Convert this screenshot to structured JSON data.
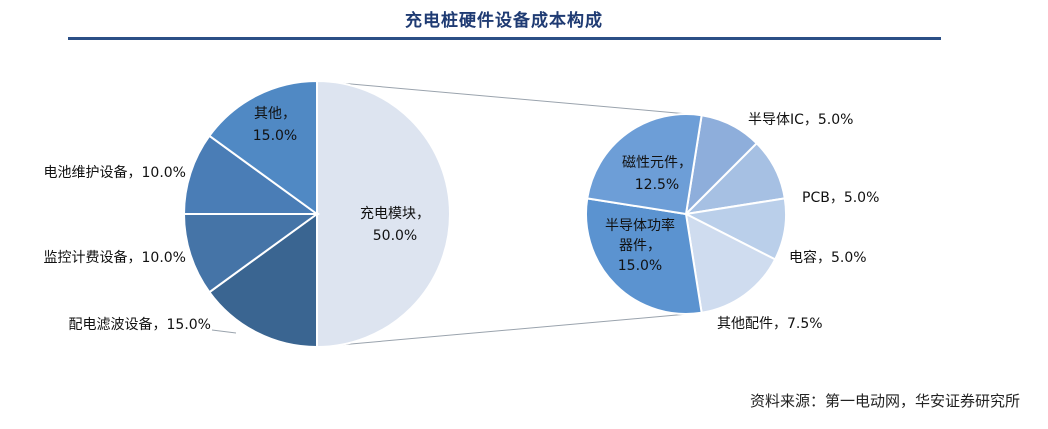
{
  "title": "充电桩硬件设备成本构成",
  "source": "资料来源：第一电动网，华安证券研究所",
  "chart_data": [
    {
      "type": "pie",
      "slices": [
        {
          "label": "充电模块",
          "value": 50.0,
          "value_text": "50.0%",
          "color": "#dde4f0"
        },
        {
          "label": "配电滤波设备",
          "value": 15.0,
          "value_text": "15.0%",
          "color": "#3a6591"
        },
        {
          "label": "监控计费设备",
          "value": 10.0,
          "value_text": "10.0%",
          "color": "#4574a7"
        },
        {
          "label": "电池维护设备",
          "value": 10.0,
          "value_text": "10.0%",
          "color": "#4a7db6"
        },
        {
          "label": "其他",
          "value": 15.0,
          "value_text": "15.0%",
          "color": "#5089c4"
        }
      ]
    },
    {
      "type": "pie",
      "slices": [
        {
          "label": "半导体IC",
          "value": 5.0,
          "value_text": "5.0%",
          "color": "#8eaedb"
        },
        {
          "label": "PCB",
          "value": 5.0,
          "value_text": "5.0%",
          "color": "#a6c0e3"
        },
        {
          "label": "电容",
          "value": 5.0,
          "value_text": "5.0%",
          "color": "#bacfea"
        },
        {
          "label": "其他配件",
          "value": 7.5,
          "value_text": "7.5%",
          "color": "#cfdcef"
        },
        {
          "label": "半导体功率器件",
          "value": 15.0,
          "value_text": "15.0%",
          "color": "#5b93d0"
        },
        {
          "label": "磁性元件",
          "value": 12.5,
          "value_text": "12.5%",
          "color": "#6d9ed7"
        }
      ]
    }
  ]
}
